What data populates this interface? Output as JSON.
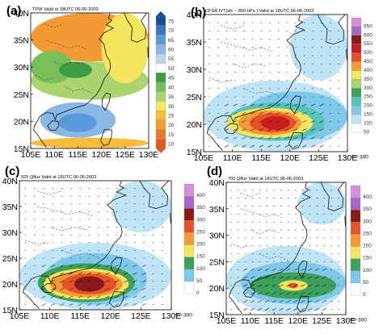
{
  "chart_data": [
    {
      "type": "heatmap",
      "panel_label": "(a)",
      "title": "TPW Valid at 18UTC 06-06-2003",
      "x_ticks": [
        "105E",
        "110E",
        "115E",
        "120E",
        "125E",
        "130E"
      ],
      "y_ticks": [
        "15N",
        "20N",
        "25N",
        "30N",
        "35N",
        "40N"
      ],
      "xlim": [
        105,
        130
      ],
      "ylim": [
        15,
        40
      ],
      "colorbar_levels": [
        "75",
        "70",
        "65",
        "60",
        "55",
        "50",
        "45",
        "40",
        "35",
        "30",
        "25",
        "20",
        "15",
        "10"
      ],
      "colorbar_colors": [
        "#1a4f96",
        "#3677c4",
        "#5b9ad8",
        "#8ab8e6",
        "#b9d6ef",
        "#ffffff",
        "#3d9c46",
        "#76bf59",
        "#a9d46e",
        "#f4e55e",
        "#f7bd3a",
        "#f29a35",
        "#ea7a28",
        "#e45c1c"
      ]
    },
    {
      "type": "heatmap",
      "panel_label": "(b)",
      "title": "CFSR IVT(sfc ~ 850 hPa ) Valid at 18UTC 06-06-2003",
      "x_ticks": [
        "105E",
        "110E",
        "115E",
        "120E",
        "125E",
        "130E"
      ],
      "y_ticks": [
        "15N",
        "20N",
        "25N",
        "30N",
        "35N",
        "40N"
      ],
      "xlim": [
        105,
        130
      ],
      "ylim": [
        15,
        40
      ],
      "colorbar_levels": [
        "650",
        "600",
        "550",
        "500",
        "450",
        "400",
        "350",
        "300",
        "250",
        "200",
        "150",
        "100",
        "50"
      ],
      "colorbar_colors": [
        "#d98ed8",
        "#a467c9",
        "#8a1a1a",
        "#c81e1e",
        "#e8502a",
        "#f29a35",
        "#f4e55e",
        "#a9d46e",
        "#3da15a",
        "#53c4b8",
        "#7ec8ea",
        "#bfe4f6",
        "#ffffff"
      ],
      "vector_reference": "300"
    },
    {
      "type": "heatmap",
      "panel_label": "(c)",
      "title": "925 Qflux Valid at 18UTC 06-06-2003",
      "x_ticks": [
        "105E",
        "110E",
        "115E",
        "120E",
        "125E",
        "130E"
      ],
      "y_ticks": [
        "15N",
        "20N",
        "25N",
        "30N",
        "35N",
        "40N"
      ],
      "xlim": [
        105,
        130
      ],
      "ylim": [
        15,
        40
      ],
      "colorbar_levels": [
        "400",
        "350",
        "300",
        "250",
        "200",
        "150",
        "100",
        "50",
        "0"
      ],
      "colorbar_colors": [
        "#d98ed8",
        "#a467c9",
        "#8a1a1a",
        "#e8502a",
        "#f29a35",
        "#f4e55e",
        "#3da15a",
        "#7ec8ea",
        "#ffffff"
      ],
      "vector_reference": "300"
    },
    {
      "type": "heatmap",
      "panel_label": "(d)",
      "title": "700 Qflux Valid at 18UTC 06-06-2003",
      "x_ticks": [
        "105E",
        "110E",
        "115E",
        "120E",
        "125E",
        "130E"
      ],
      "y_ticks": [
        "15N",
        "20N",
        "25N",
        "30N",
        "35N",
        "40N"
      ],
      "xlim": [
        105,
        130
      ],
      "ylim": [
        15,
        40
      ],
      "colorbar_levels": [
        "400",
        "350",
        "300",
        "250",
        "200",
        "150",
        "100",
        "50",
        "0"
      ],
      "colorbar_colors": [
        "#d98ed8",
        "#a467c9",
        "#8a1a1a",
        "#e8502a",
        "#f29a35",
        "#f4e55e",
        "#3da15a",
        "#7ec8ea",
        "#ffffff"
      ],
      "vector_reference": "300"
    }
  ]
}
